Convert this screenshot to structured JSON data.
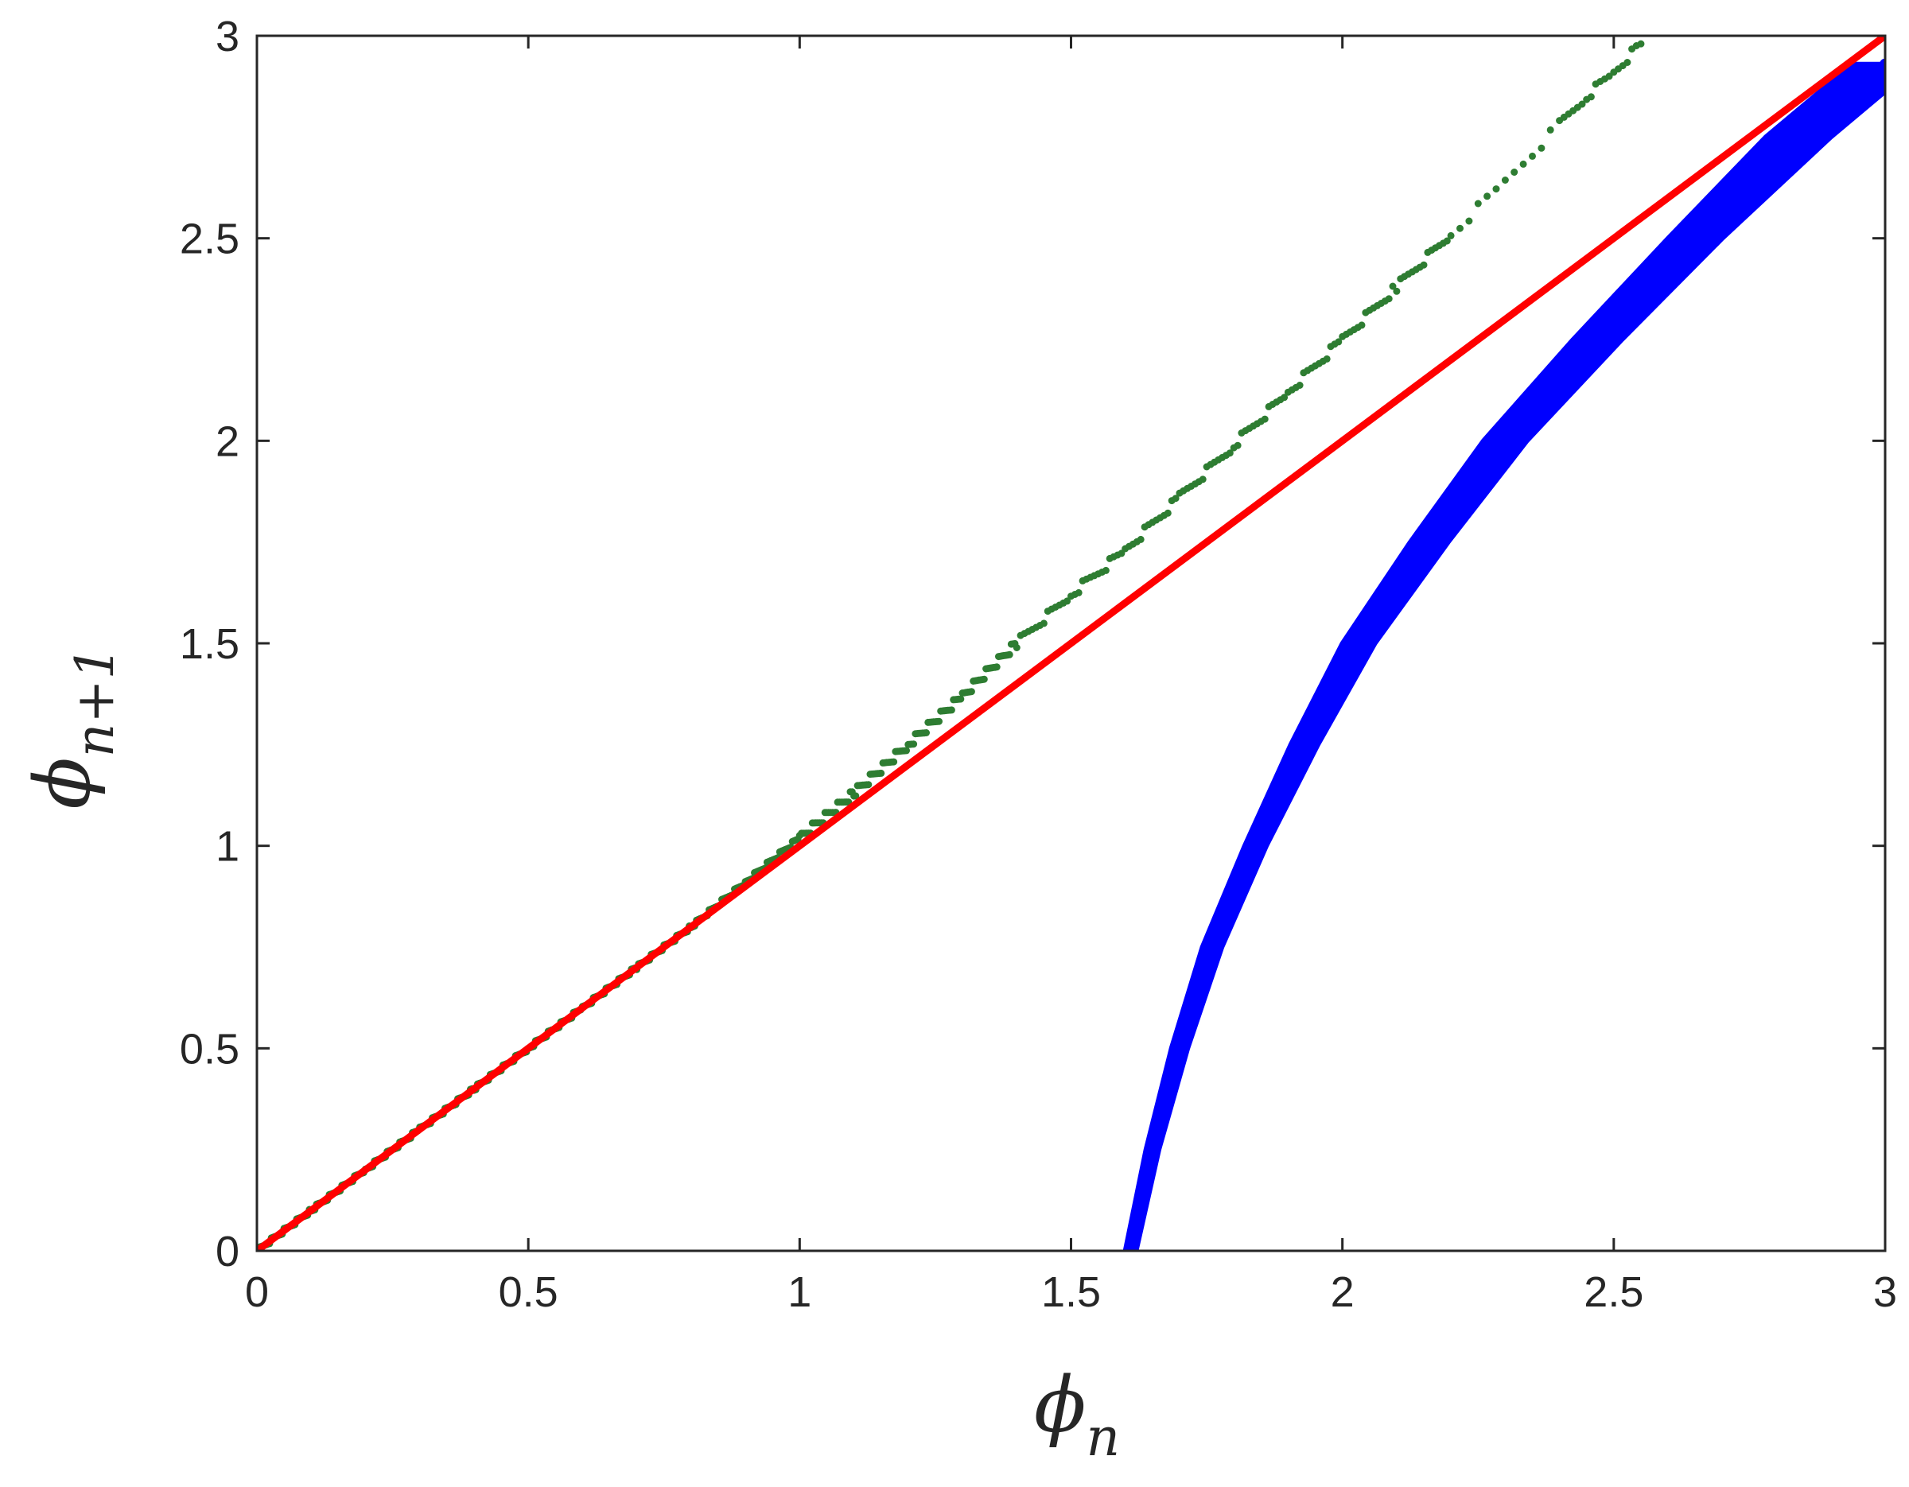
{
  "chart_data": {
    "type": "scatter",
    "title": "",
    "xlabel": {
      "symbol": "ϕ",
      "subscript": "n"
    },
    "ylabel": {
      "symbol": "ϕ",
      "subscript": "n+1"
    },
    "xlim": [
      0,
      3
    ],
    "ylim": [
      0,
      3
    ],
    "x_ticks": [
      "0",
      "0.5",
      "1",
      "1.5",
      "2",
      "2.5",
      "3"
    ],
    "y_ticks": [
      "0",
      "0.5",
      "1",
      "1.5",
      "2",
      "2.5",
      "3"
    ],
    "grid": false,
    "legend": "none",
    "series": [
      {
        "kind": "band",
        "color": "#0000ff",
        "points": [
          [
            1.61,
            0.0
          ],
          [
            1.65,
            0.25
          ],
          [
            1.7,
            0.5
          ],
          [
            1.76,
            0.75
          ],
          [
            1.84,
            1.0
          ],
          [
            1.93,
            1.25
          ],
          [
            2.03,
            1.5
          ],
          [
            2.16,
            1.75
          ],
          [
            2.3,
            2.0
          ],
          [
            2.47,
            2.25
          ],
          [
            2.65,
            2.5
          ],
          [
            2.84,
            2.75
          ],
          [
            3.0,
            2.93
          ]
        ],
        "x_spread": [
          0.01,
          0.012,
          0.015,
          0.018,
          0.02,
          0.025,
          0.03,
          0.035,
          0.04,
          0.045,
          0.05,
          0.06,
          0.06
        ]
      },
      {
        "kind": "line",
        "color": "#ff0000",
        "points": [
          [
            0,
            0
          ],
          [
            3,
            3
          ]
        ]
      },
      {
        "kind": "dots",
        "color": "#2e7d32",
        "points": [
          [
            0.0,
            0.0
          ],
          [
            0.1,
            0.1
          ],
          [
            0.2,
            0.2
          ],
          [
            0.3,
            0.3
          ],
          [
            0.4,
            0.4
          ],
          [
            0.5,
            0.5
          ],
          [
            0.6,
            0.6
          ],
          [
            0.7,
            0.7
          ],
          [
            0.8,
            0.8
          ],
          [
            0.9,
            0.91
          ],
          [
            1.0,
            1.02
          ],
          [
            1.1,
            1.13
          ],
          [
            1.2,
            1.25
          ],
          [
            1.3,
            1.37
          ],
          [
            1.4,
            1.5
          ],
          [
            1.5,
            1.62
          ],
          [
            1.6,
            1.73
          ],
          [
            1.7,
            1.86
          ],
          [
            1.8,
            1.99
          ],
          [
            1.9,
            2.12
          ],
          [
            2.0,
            2.25
          ],
          [
            2.1,
            2.38
          ],
          [
            2.2,
            2.51
          ],
          [
            2.3,
            2.64
          ],
          [
            2.4,
            2.78
          ],
          [
            2.45,
            2.85
          ],
          [
            2.5,
            2.91
          ],
          [
            2.55,
            2.98
          ]
        ]
      }
    ]
  }
}
